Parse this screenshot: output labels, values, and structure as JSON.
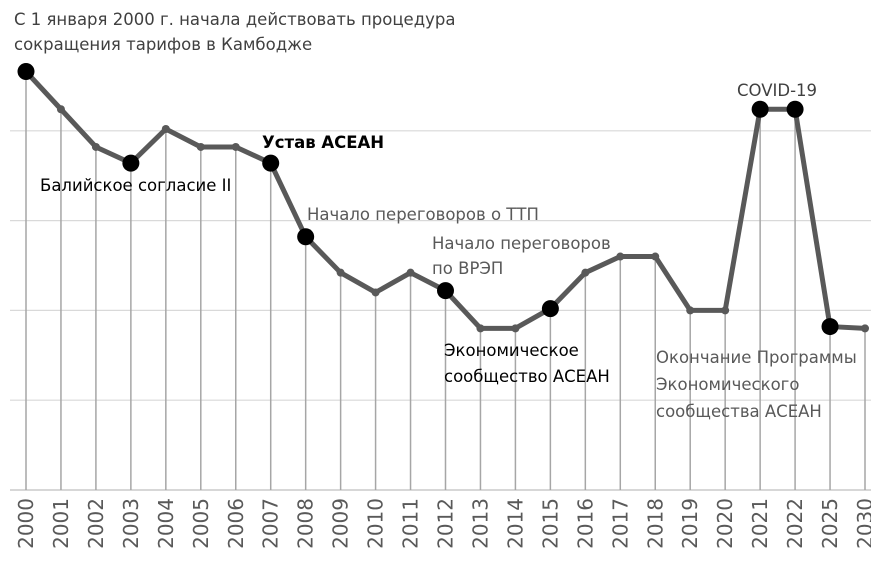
{
  "chart_data": {
    "type": "line",
    "categories": [
      "2000",
      "2001",
      "2002",
      "2003",
      "2004",
      "2005",
      "2006",
      "2007",
      "2008",
      "2009",
      "2010",
      "2011",
      "2012",
      "2013",
      "2014",
      "2015",
      "2016",
      "2017",
      "2018",
      "2019",
      "2020",
      "2021",
      "2022",
      "2025",
      "2030"
    ],
    "values": [
      4.66,
      4.24,
      3.82,
      3.64,
      4.02,
      3.82,
      3.82,
      3.64,
      2.82,
      2.42,
      2.2,
      2.42,
      2.22,
      1.8,
      1.8,
      2.02,
      2.42,
      2.6,
      2.6,
      2.0,
      2.0,
      4.24,
      4.24,
      1.82,
      1.8
    ],
    "color": "#595959",
    "highlighted_points": [
      0,
      3,
      7,
      8,
      12,
      15,
      21,
      22,
      23
    ],
    "ylim": [
      0,
      5
    ],
    "yticks": [
      0,
      1,
      2,
      3,
      4
    ],
    "grid": true,
    "annotations": [
      {
        "lines": [
          "С 1 января 2000 г. начала действовать процедура",
          "сокращения тарифов в Камбодже"
        ]
      },
      {
        "lines": [
          "Балийское согласие II"
        ]
      },
      {
        "lines": [
          "Устав  АСЕАН"
        ]
      },
      {
        "lines": [
          "Начало переговоров о ТТП"
        ]
      },
      {
        "lines": [
          "Начало переговоров",
          "по ВРЭП"
        ]
      },
      {
        "lines": [
          "Экономическое",
          "сообщество АСЕАН"
        ]
      },
      {
        "lines": [
          "Окончание Программы",
          "Экономического",
          "сообщества АСЕАН"
        ]
      },
      {
        "lines": [
          "COVID-19"
        ]
      }
    ]
  }
}
